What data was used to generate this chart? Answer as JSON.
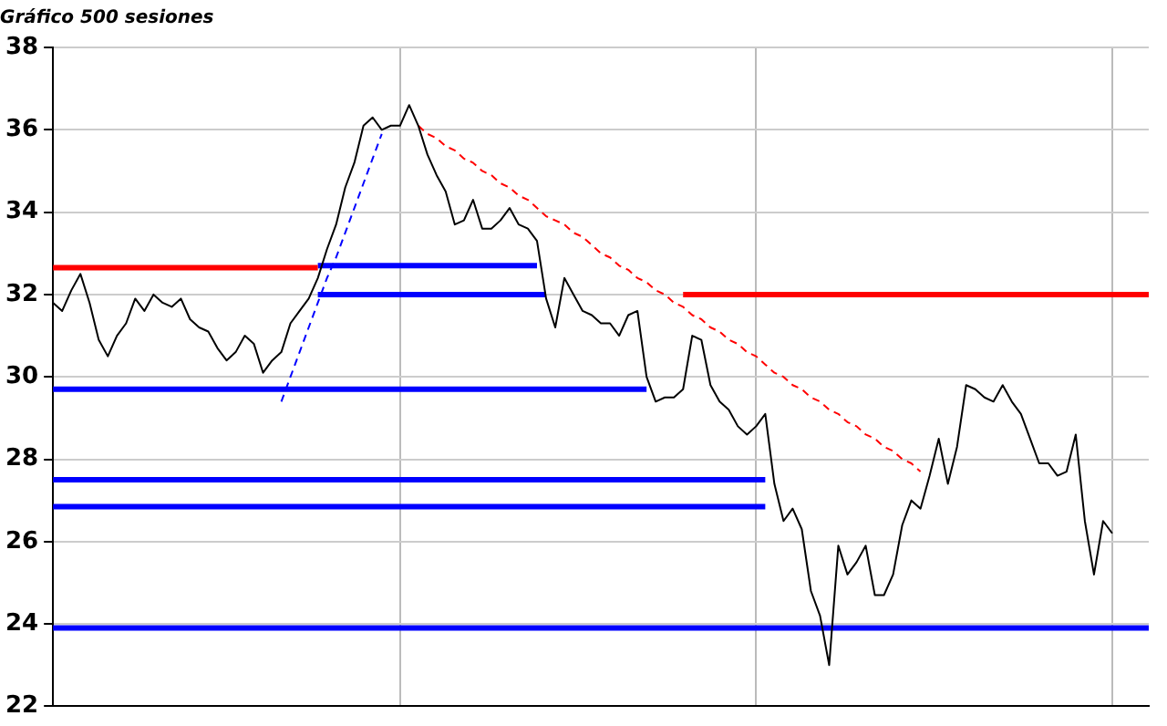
{
  "chart_data": {
    "type": "line",
    "title": "Gráfico 500 sesiones",
    "categories": [
      null,
      null,
      null,
      null,
      null,
      null,
      null,
      null,
      null,
      null,
      null,
      null,
      null,
      null,
      null,
      null,
      null,
      null,
      null,
      null,
      null,
      null,
      null,
      null,
      null,
      null,
      null,
      null,
      null,
      null,
      null,
      null,
      null,
      null,
      null,
      null,
      null,
      null,
      null,
      null,
      null,
      null,
      null,
      null,
      null,
      null,
      null,
      null,
      null,
      null,
      null,
      null,
      null,
      null,
      null,
      null,
      null,
      null,
      null,
      null,
      null,
      null,
      null,
      null,
      null,
      null,
      null,
      null,
      null,
      null,
      null,
      null,
      null,
      null,
      null,
      null,
      null,
      null,
      null,
      null,
      null,
      null,
      null,
      null,
      null,
      null,
      null,
      null,
      null,
      null,
      null,
      null,
      null,
      null,
      null,
      null,
      null,
      null,
      null,
      null,
      null,
      null,
      null,
      null,
      null,
      null,
      null,
      null,
      null,
      null,
      null,
      null,
      null,
      null,
      null,
      null,
      null,
      null,
      null,
      null,
      null
    ],
    "ylim": [
      22,
      38
    ],
    "yticks": [
      22,
      24,
      26,
      28,
      30,
      32,
      34,
      36,
      38
    ],
    "grid": true,
    "tick_labels": "y",
    "marker": "none",
    "series": [
      {
        "color": "#000000",
        "values": [
          31.8,
          31.6,
          32.1,
          32.5,
          31.8,
          30.9,
          30.5,
          31.0,
          31.3,
          31.9,
          31.6,
          32.0,
          31.8,
          31.7,
          31.9,
          31.4,
          31.2,
          31.1,
          30.7,
          30.4,
          30.6,
          31.0,
          30.8,
          30.1,
          30.4,
          30.6,
          31.3,
          31.6,
          31.9,
          32.4,
          33.1,
          33.7,
          34.6,
          35.2,
          36.1,
          36.3,
          36.0,
          36.1,
          36.1,
          36.6,
          36.1,
          35.4,
          34.9,
          34.5,
          33.7,
          33.8,
          34.3,
          33.6,
          33.6,
          33.8,
          34.1,
          33.7,
          33.6,
          33.3,
          31.9,
          31.2,
          32.4,
          32.0,
          31.6,
          31.5,
          31.3,
          31.3,
          31.0,
          31.5,
          31.6,
          30.0,
          29.4,
          29.5,
          29.5,
          29.7,
          31.0,
          30.9,
          29.8,
          29.4,
          29.2,
          28.8,
          28.6,
          28.8,
          29.1,
          27.4,
          26.5,
          26.8,
          26.3,
          24.8,
          24.2,
          23.0,
          25.9,
          25.2,
          25.5,
          25.9,
          24.7,
          24.7,
          25.2,
          26.4,
          27.0,
          26.8,
          27.6,
          28.5,
          27.4,
          28.3,
          29.8,
          29.7,
          29.5,
          29.4,
          29.8,
          29.4,
          29.1,
          28.5,
          27.9,
          27.9,
          27.6,
          27.7,
          28.6,
          26.5,
          25.2,
          26.5,
          26.2,
          null,
          null,
          null,
          null
        ]
      },
      {
        "color": "#ff0000",
        "values": [
          32.65,
          32.65,
          32.65,
          32.65,
          32.65,
          32.65,
          32.65,
          32.65,
          32.65,
          32.65,
          32.65,
          32.65,
          32.65,
          32.65,
          32.65,
          32.65,
          32.65,
          32.65,
          32.65,
          32.65,
          32.65,
          32.65,
          32.65,
          32.65,
          32.65,
          32.65,
          32.65,
          32.65,
          32.65,
          32.65,
          null,
          null,
          null,
          null,
          null,
          null,
          null,
          null,
          null,
          null,
          null,
          null,
          null,
          null,
          null,
          null,
          null,
          null,
          null,
          null,
          null,
          null,
          null,
          null,
          null,
          null,
          null,
          null,
          null,
          null,
          null,
          null,
          null,
          null,
          null,
          null,
          null,
          null,
          null,
          null,
          null,
          null,
          null,
          null,
          null,
          null,
          null,
          null,
          null,
          null,
          null,
          null,
          null,
          null,
          null,
          null,
          null,
          null,
          null,
          null,
          null,
          null,
          null,
          null,
          null,
          null,
          null,
          null,
          null,
          null,
          null,
          null,
          null,
          null,
          null,
          null,
          null,
          null,
          null,
          null,
          null,
          null,
          null,
          null,
          null,
          null,
          null,
          null,
          null,
          null,
          null
        ]
      },
      {
        "color": "#0000ff",
        "values": [
          null,
          null,
          null,
          null,
          null,
          null,
          null,
          null,
          null,
          null,
          null,
          null,
          null,
          null,
          null,
          null,
          null,
          null,
          null,
          null,
          null,
          null,
          null,
          null,
          null,
          null,
          null,
          null,
          null,
          32.7,
          32.7,
          32.7,
          32.7,
          32.7,
          32.7,
          32.7,
          32.7,
          32.7,
          32.7,
          32.7,
          32.7,
          32.7,
          32.7,
          32.7,
          32.7,
          32.7,
          32.7,
          32.7,
          32.7,
          32.7,
          32.7,
          32.7,
          32.7,
          32.7,
          null,
          null,
          null,
          null,
          null,
          null,
          null,
          null,
          null,
          null,
          null,
          null,
          null,
          null,
          null,
          null,
          null,
          null,
          null,
          null,
          null,
          null,
          null,
          null,
          null,
          null,
          null,
          null,
          null,
          null,
          null,
          null,
          null,
          null,
          null,
          null,
          null,
          null,
          null,
          null,
          null,
          null,
          null,
          null,
          null,
          null,
          null,
          null,
          null,
          null,
          null,
          null,
          null,
          null,
          null,
          null,
          null,
          null,
          null,
          null,
          null,
          null,
          null,
          null,
          null,
          null,
          null
        ]
      },
      {
        "color": "#0000ff",
        "values": [
          null,
          null,
          null,
          null,
          null,
          null,
          null,
          null,
          null,
          null,
          null,
          null,
          null,
          null,
          null,
          null,
          null,
          null,
          null,
          null,
          null,
          null,
          null,
          null,
          null,
          null,
          null,
          null,
          null,
          32.0,
          32.0,
          32.0,
          32.0,
          32.0,
          32.0,
          32.0,
          32.0,
          32.0,
          32.0,
          32.0,
          32.0,
          32.0,
          32.0,
          32.0,
          32.0,
          32.0,
          32.0,
          32.0,
          32.0,
          32.0,
          32.0,
          32.0,
          32.0,
          32.0,
          32.0,
          null,
          null,
          null,
          null,
          null,
          null,
          null,
          null,
          null,
          null,
          null,
          null,
          null,
          null,
          null,
          null,
          null,
          null,
          null,
          null,
          null,
          null,
          null,
          null,
          null,
          null,
          null,
          null,
          null,
          null,
          null,
          null,
          null,
          null,
          null,
          null,
          null,
          null,
          null,
          null,
          null,
          null,
          null,
          null,
          null,
          null,
          null,
          null,
          null,
          null,
          null,
          null,
          null,
          null,
          null,
          null,
          null,
          null,
          null,
          null,
          null,
          null,
          null,
          null,
          null,
          null
        ]
      },
      {
        "color": "#0000ff",
        "values": [
          29.7,
          29.7,
          29.7,
          29.7,
          29.7,
          29.7,
          29.7,
          29.7,
          29.7,
          29.7,
          29.7,
          29.7,
          29.7,
          29.7,
          29.7,
          29.7,
          29.7,
          29.7,
          29.7,
          29.7,
          29.7,
          29.7,
          29.7,
          29.7,
          29.7,
          29.7,
          29.7,
          29.7,
          29.7,
          29.7,
          29.7,
          29.7,
          29.7,
          29.7,
          29.7,
          29.7,
          29.7,
          29.7,
          29.7,
          29.7,
          29.7,
          29.7,
          29.7,
          29.7,
          29.7,
          29.7,
          29.7,
          29.7,
          29.7,
          29.7,
          29.7,
          29.7,
          29.7,
          29.7,
          29.7,
          29.7,
          29.7,
          29.7,
          29.7,
          29.7,
          29.7,
          29.7,
          29.7,
          29.7,
          29.7,
          29.7,
          null,
          null,
          null,
          null,
          null,
          null,
          null,
          null,
          null,
          null,
          null,
          null,
          null,
          null,
          null,
          null,
          null,
          null,
          null,
          null,
          null,
          null,
          null,
          null,
          null,
          null,
          null,
          null,
          null,
          null,
          null,
          null,
          null,
          null,
          null,
          null,
          null,
          null,
          null,
          null,
          null,
          null,
          null,
          null,
          null,
          null,
          null,
          null,
          null,
          null,
          null,
          null,
          null,
          null,
          null
        ]
      },
      {
        "color": "#0000ff",
        "values": [
          27.5,
          27.5,
          27.5,
          27.5,
          27.5,
          27.5,
          27.5,
          27.5,
          27.5,
          27.5,
          27.5,
          27.5,
          27.5,
          27.5,
          27.5,
          27.5,
          27.5,
          27.5,
          27.5,
          27.5,
          27.5,
          27.5,
          27.5,
          27.5,
          27.5,
          27.5,
          27.5,
          27.5,
          27.5,
          27.5,
          27.5,
          27.5,
          27.5,
          27.5,
          27.5,
          27.5,
          27.5,
          27.5,
          27.5,
          27.5,
          27.5,
          27.5,
          27.5,
          27.5,
          27.5,
          27.5,
          27.5,
          27.5,
          27.5,
          27.5,
          27.5,
          27.5,
          27.5,
          27.5,
          27.5,
          27.5,
          27.5,
          27.5,
          27.5,
          27.5,
          27.5,
          27.5,
          27.5,
          27.5,
          27.5,
          27.5,
          27.5,
          27.5,
          27.5,
          27.5,
          27.5,
          27.5,
          27.5,
          27.5,
          27.5,
          27.5,
          27.5,
          27.5,
          27.5,
          null,
          null,
          null,
          null,
          null,
          null,
          null,
          null,
          null,
          null,
          null,
          null,
          null,
          null,
          null,
          null,
          null,
          null,
          null,
          null,
          null,
          null,
          null,
          null,
          null,
          null,
          null,
          null,
          null,
          null,
          null,
          null,
          null,
          null,
          null,
          null,
          null,
          null,
          null,
          null,
          null,
          null
        ]
      },
      {
        "color": "#0000ff",
        "values": [
          26.85,
          26.85,
          26.85,
          26.85,
          26.85,
          26.85,
          26.85,
          26.85,
          26.85,
          26.85,
          26.85,
          26.85,
          26.85,
          26.85,
          26.85,
          26.85,
          26.85,
          26.85,
          26.85,
          26.85,
          26.85,
          26.85,
          26.85,
          26.85,
          26.85,
          26.85,
          26.85,
          26.85,
          26.85,
          26.85,
          26.85,
          26.85,
          26.85,
          26.85,
          26.85,
          26.85,
          26.85,
          26.85,
          26.85,
          26.85,
          26.85,
          26.85,
          26.85,
          26.85,
          26.85,
          26.85,
          26.85,
          26.85,
          26.85,
          26.85,
          26.85,
          26.85,
          26.85,
          26.85,
          26.85,
          26.85,
          26.85,
          26.85,
          26.85,
          26.85,
          26.85,
          26.85,
          26.85,
          26.85,
          26.85,
          26.85,
          26.85,
          26.85,
          26.85,
          26.85,
          26.85,
          26.85,
          26.85,
          26.85,
          26.85,
          26.85,
          26.85,
          26.85,
          26.85,
          null,
          null,
          null,
          null,
          null,
          null,
          null,
          null,
          null,
          null,
          null,
          null,
          null,
          null,
          null,
          null,
          null,
          null,
          null,
          null,
          null,
          null,
          null,
          null,
          null,
          null,
          null,
          null,
          null,
          null,
          null,
          null,
          null,
          null,
          null,
          null,
          null,
          null,
          null,
          null,
          null,
          null
        ]
      },
      {
        "color": "#0000ff",
        "values": [
          23.9,
          23.9,
          23.9,
          23.9,
          23.9,
          23.9,
          23.9,
          23.9,
          23.9,
          23.9,
          23.9,
          23.9,
          23.9,
          23.9,
          23.9,
          23.9,
          23.9,
          23.9,
          23.9,
          23.9,
          23.9,
          23.9,
          23.9,
          23.9,
          23.9,
          23.9,
          23.9,
          23.9,
          23.9,
          23.9,
          23.9,
          23.9,
          23.9,
          23.9,
          23.9,
          23.9,
          23.9,
          23.9,
          23.9,
          23.9,
          23.9,
          23.9,
          23.9,
          23.9,
          23.9,
          23.9,
          23.9,
          23.9,
          23.9,
          23.9,
          23.9,
          23.9,
          23.9,
          23.9,
          23.9,
          23.9,
          23.9,
          23.9,
          23.9,
          23.9,
          23.9,
          23.9,
          23.9,
          23.9,
          23.9,
          23.9,
          23.9,
          23.9,
          23.9,
          23.9,
          23.9,
          23.9,
          23.9,
          23.9,
          23.9,
          23.9,
          23.9,
          23.9,
          23.9,
          23.9,
          23.9,
          23.9,
          23.9,
          23.9,
          23.9,
          23.9,
          23.9,
          23.9,
          23.9,
          23.9,
          23.9,
          23.9,
          23.9,
          23.9,
          23.9,
          23.9,
          23.9,
          23.9,
          23.9,
          23.9,
          23.9,
          23.9,
          23.9,
          23.9,
          23.9,
          23.9,
          23.9,
          23.9,
          23.9,
          23.9,
          23.9,
          23.9,
          23.9,
          23.9,
          23.9,
          23.9,
          23.9,
          23.9,
          23.9,
          23.9,
          23.9
        ]
      },
      {
        "color": "#ff0000",
        "values": [
          null,
          null,
          null,
          null,
          null,
          null,
          null,
          null,
          null,
          null,
          null,
          null,
          null,
          null,
          null,
          null,
          null,
          null,
          null,
          null,
          null,
          null,
          null,
          null,
          null,
          null,
          null,
          null,
          null,
          null,
          null,
          null,
          null,
          null,
          null,
          null,
          null,
          null,
          null,
          null,
          null,
          null,
          null,
          null,
          null,
          null,
          null,
          null,
          null,
          null,
          null,
          null,
          null,
          null,
          null,
          null,
          null,
          null,
          null,
          null,
          null,
          null,
          null,
          null,
          null,
          null,
          null,
          null,
          null,
          32.0,
          32.0,
          32.0,
          32.0,
          32.0,
          32.0,
          32.0,
          32.0,
          32.0,
          32.0,
          32.0,
          32.0,
          32.0,
          32.0,
          32.0,
          32.0,
          32.0,
          32.0,
          32.0,
          32.0,
          32.0,
          32.0,
          32.0,
          32.0,
          32.0,
          32.0,
          32.0,
          32.0,
          32.0,
          32.0,
          32.0,
          32.0,
          32.0,
          32.0,
          32.0,
          32.0,
          32.0,
          32.0,
          32.0,
          32.0,
          32.0,
          32.0,
          32.0,
          32.0,
          32.0,
          32.0,
          32.0,
          32.0,
          32.0,
          32.0,
          32.0,
          32.0
        ]
      },
      {
        "color": "#0000ff",
        "line_style": "dashed",
        "values": [
          null,
          null,
          null,
          null,
          null,
          null,
          null,
          null,
          null,
          null,
          null,
          null,
          null,
          null,
          null,
          null,
          null,
          null,
          null,
          null,
          null,
          null,
          null,
          null,
          null,
          29.4,
          30.0,
          30.6,
          31.2,
          31.8,
          32.4,
          32.9,
          33.5,
          34.1,
          34.7,
          35.3,
          35.9,
          null,
          null,
          null,
          null,
          null,
          null,
          null,
          null,
          null,
          null,
          null,
          null,
          null,
          null,
          null,
          null,
          null,
          null,
          null,
          null,
          null,
          null,
          null,
          null,
          null,
          null,
          null,
          null,
          null,
          null,
          null,
          null,
          null,
          null,
          null,
          null,
          null,
          null,
          null,
          null,
          null,
          null,
          null,
          null,
          null,
          null,
          null,
          null,
          null,
          null,
          null,
          null,
          null,
          null,
          null,
          null,
          null,
          null,
          null,
          null,
          null,
          null,
          null,
          null,
          null,
          null,
          null,
          null,
          null,
          null,
          null,
          null,
          null,
          null,
          null,
          null,
          null,
          null,
          null,
          null,
          null,
          null,
          null,
          null
        ]
      },
      {
        "color": "#ff0000",
        "line_style": "dashed",
        "values": [
          null,
          null,
          null,
          null,
          null,
          null,
          null,
          null,
          null,
          null,
          null,
          null,
          null,
          null,
          null,
          null,
          null,
          null,
          null,
          null,
          null,
          null,
          null,
          null,
          null,
          null,
          null,
          null,
          null,
          null,
          null,
          null,
          null,
          null,
          null,
          null,
          null,
          null,
          null,
          null,
          36.1,
          35.9,
          35.8,
          35.6,
          35.5,
          35.3,
          35.2,
          35.0,
          34.9,
          34.7,
          34.6,
          34.4,
          34.3,
          34.1,
          33.9,
          33.8,
          33.7,
          33.5,
          33.4,
          33.2,
          33.0,
          32.9,
          32.7,
          32.6,
          32.4,
          32.3,
          32.1,
          32.0,
          31.8,
          31.7,
          31.5,
          31.4,
          31.2,
          31.1,
          30.9,
          30.8,
          30.6,
          30.5,
          30.3,
          30.1,
          30.0,
          29.8,
          29.7,
          29.5,
          29.4,
          29.2,
          29.1,
          28.9,
          28.8,
          28.6,
          28.5,
          28.3,
          28.2,
          28.0,
          27.9,
          27.7,
          null,
          null,
          null,
          null,
          null,
          null,
          null,
          null,
          null,
          null,
          null,
          null,
          null,
          null,
          null,
          null,
          null,
          null,
          null,
          null,
          null,
          null,
          null,
          null,
          null
        ]
      }
    ]
  }
}
